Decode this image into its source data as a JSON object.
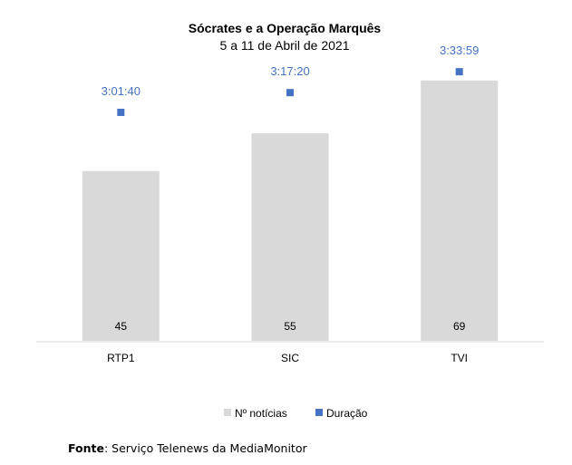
{
  "chart_data": {
    "type": "bar",
    "title": "Sócrates e a Operação Marquês",
    "subtitle": "5 a 11 de Abril de 2021",
    "categories": [
      "RTP1",
      "SIC",
      "TVI"
    ],
    "series": [
      {
        "name": "Nº notícias",
        "kind": "bar",
        "color": "#d9d9d9",
        "values": [
          45,
          55,
          69
        ],
        "labels": [
          "45",
          "55",
          "69"
        ],
        "ylim": [
          0,
          80
        ]
      },
      {
        "name": "Duração",
        "kind": "marker",
        "color": "#4472c4",
        "values_seconds": [
          10900,
          11840,
          12839
        ],
        "labels": [
          "3:01:40",
          "3:17:20",
          "3:33:59"
        ],
        "ylim_seconds": [
          0,
          14400
        ]
      }
    ],
    "legend_position": "bottom",
    "grid": false
  },
  "source": {
    "label": "Fonte",
    "text": ": Serviço Telenews da MediaMonitor"
  }
}
